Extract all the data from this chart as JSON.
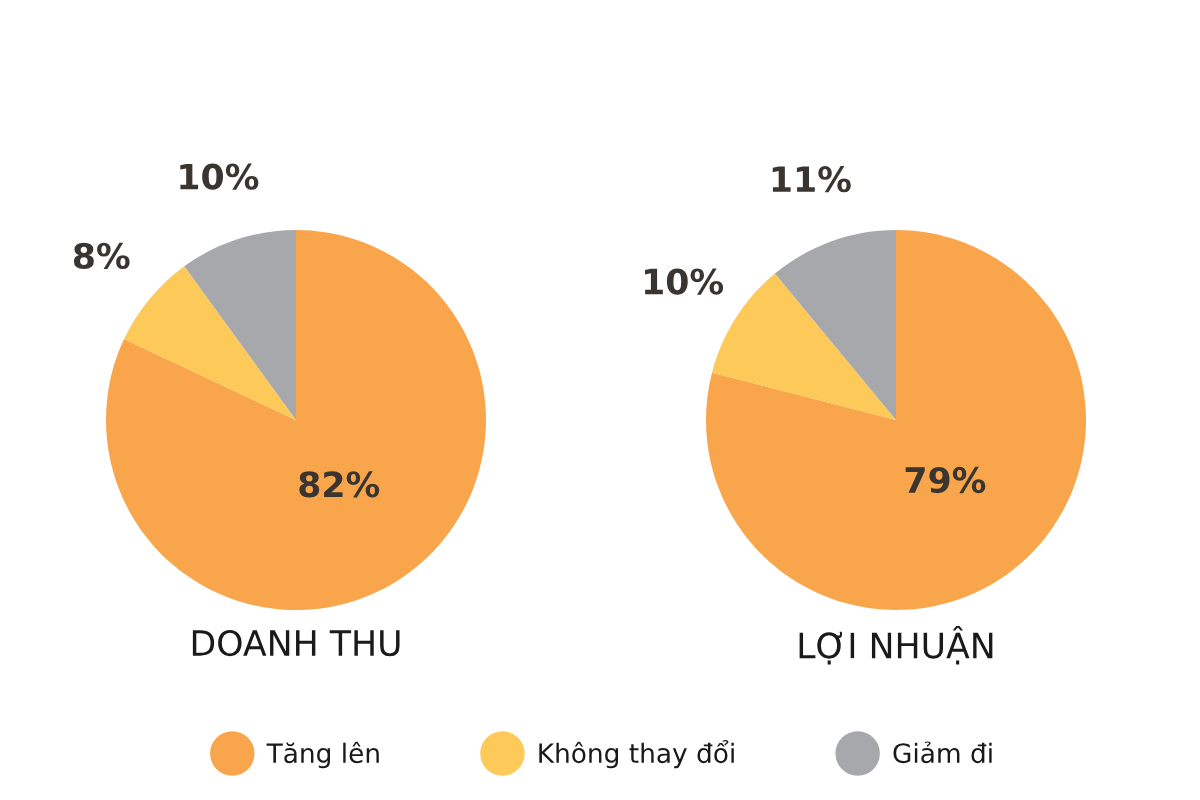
{
  "chart_data": {
    "type": "pie",
    "categories": [
      "Tăng lên",
      "Không thay đổi",
      "Giảm đi"
    ],
    "colors": [
      "#f9a54c",
      "#fdc958",
      "#a6a8ab"
    ],
    "legend": "bottom",
    "series": [
      {
        "name": "DOANH THU",
        "values": [
          82,
          8,
          10
        ],
        "value_labels": [
          "82%",
          "8%",
          "10%"
        ]
      },
      {
        "name": "LỢI NHUẬN",
        "values": [
          79,
          10,
          11
        ],
        "value_labels": [
          "79%",
          "10%",
          "11%"
        ]
      }
    ]
  }
}
